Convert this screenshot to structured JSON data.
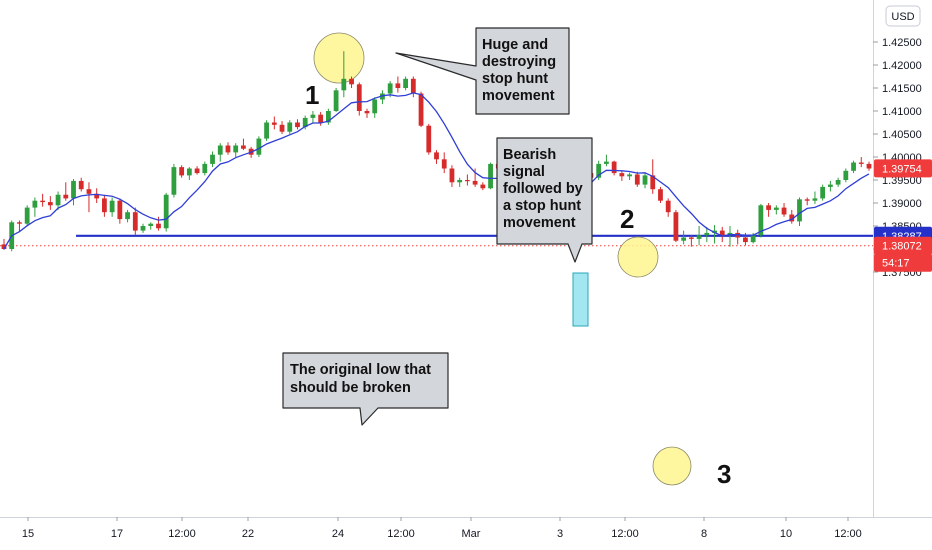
{
  "chart_data": {
    "type": "candlestick",
    "currency": "USD",
    "y_ticks": [
      "1.42500",
      "1.42000",
      "1.41500",
      "1.41000",
      "1.40500",
      "1.40000",
      "1.39500",
      "1.39000",
      "1.38500",
      "1.38000",
      "1.37500"
    ],
    "x_ticks": [
      "15",
      "17",
      "12:00",
      "22",
      "24",
      "12:00",
      "Mar",
      "3",
      "12:00",
      "8",
      "10",
      "12:00"
    ],
    "price_badges": [
      {
        "text": "1.39754",
        "value": 1.39754,
        "color": "#ef3b3b"
      },
      {
        "text": "1.38287",
        "value": 1.38287,
        "color": "#2430c8"
      },
      {
        "text": "1.38072",
        "value": 1.38072,
        "color": "#ef3b3b"
      },
      {
        "text": "54:17",
        "color": "#ef3b3b"
      }
    ],
    "horizontal_line": {
      "value": 1.38287,
      "color": "#2430c8"
    },
    "dotted_line": {
      "value": 1.38072,
      "color": "#ef3b3b"
    },
    "colors": {
      "up": "#2e9e3f",
      "down": "#d62b2b",
      "ma": "#2f3fd6",
      "callout": "#d3d6db",
      "highlight": "#fff68f"
    },
    "annotations": [
      {
        "id": "huge",
        "lines": [
          "Huge and",
          "destroying",
          "stop hunt",
          "movement"
        ]
      },
      {
        "id": "bearish",
        "lines": [
          "Bearish",
          "signal",
          "followed by",
          "a stop hunt",
          "movement"
        ]
      },
      {
        "id": "original",
        "lines": [
          "The original low that",
          "should be broken"
        ]
      }
    ],
    "number_labels": [
      "1",
      "2",
      "3"
    ],
    "candles": [
      [
        1.381,
        1.3822,
        1.3798,
        1.38
      ],
      [
        1.38,
        1.3862,
        1.3795,
        1.3858
      ],
      [
        1.3858,
        1.3862,
        1.3838,
        1.3855
      ],
      [
        1.3855,
        1.3895,
        1.385,
        1.389
      ],
      [
        1.389,
        1.3912,
        1.387,
        1.3905
      ],
      [
        1.3905,
        1.392,
        1.3892,
        1.3902
      ],
      [
        1.3902,
        1.3915,
        1.3885,
        1.3895
      ],
      [
        1.3895,
        1.3925,
        1.3885,
        1.3918
      ],
      [
        1.3918,
        1.3945,
        1.3905,
        1.391
      ],
      [
        1.391,
        1.3952,
        1.3895,
        1.3948
      ],
      [
        1.3948,
        1.3955,
        1.3925,
        1.393
      ],
      [
        1.393,
        1.3945,
        1.388,
        1.392
      ],
      [
        1.392,
        1.3932,
        1.39,
        1.391
      ],
      [
        1.391,
        1.3918,
        1.387,
        1.388
      ],
      [
        1.388,
        1.3912,
        1.387,
        1.3905
      ],
      [
        1.3905,
        1.391,
        1.3855,
        1.3865
      ],
      [
        1.3865,
        1.3885,
        1.3858,
        1.388
      ],
      [
        1.388,
        1.389,
        1.383,
        1.384
      ],
      [
        1.384,
        1.3855,
        1.3835,
        1.385
      ],
      [
        1.385,
        1.3858,
        1.3842,
        1.3855
      ],
      [
        1.3855,
        1.387,
        1.384,
        1.3845
      ],
      [
        1.3845,
        1.3922,
        1.3838,
        1.3918
      ],
      [
        1.3918,
        1.3985,
        1.3912,
        1.3978
      ],
      [
        1.3978,
        1.3982,
        1.3955,
        1.396
      ],
      [
        1.396,
        1.3978,
        1.395,
        1.3975
      ],
      [
        1.3975,
        1.398,
        1.3962,
        1.3965
      ],
      [
        1.3965,
        1.399,
        1.396,
        1.3985
      ],
      [
        1.3985,
        1.4012,
        1.3978,
        1.4005
      ],
      [
        1.4005,
        1.403,
        1.399,
        1.4025
      ],
      [
        1.4025,
        1.4032,
        1.4005,
        1.401
      ],
      [
        1.401,
        1.403,
        1.4,
        1.4025
      ],
      [
        1.4025,
        1.404,
        1.4015,
        1.4018
      ],
      [
        1.4018,
        1.4022,
        1.3998,
        1.4005
      ],
      [
        1.4005,
        1.4045,
        1.4,
        1.404
      ],
      [
        1.404,
        1.408,
        1.4035,
        1.4075
      ],
      [
        1.4075,
        1.4088,
        1.406,
        1.407
      ],
      [
        1.407,
        1.4078,
        1.405,
        1.4055
      ],
      [
        1.4055,
        1.408,
        1.405,
        1.4075
      ],
      [
        1.4075,
        1.4082,
        1.406,
        1.4065
      ],
      [
        1.4065,
        1.409,
        1.406,
        1.4085
      ],
      [
        1.4085,
        1.41,
        1.4075,
        1.4092
      ],
      [
        1.4092,
        1.4098,
        1.4068,
        1.4075
      ],
      [
        1.4075,
        1.4105,
        1.407,
        1.41
      ],
      [
        1.41,
        1.415,
        1.4098,
        1.4145
      ],
      [
        1.4145,
        1.423,
        1.413,
        1.417
      ],
      [
        1.417,
        1.4175,
        1.415,
        1.4158
      ],
      [
        1.4158,
        1.4162,
        1.409,
        1.41
      ],
      [
        1.41,
        1.4105,
        1.4085,
        1.4095
      ],
      [
        1.4095,
        1.413,
        1.4085,
        1.4125
      ],
      [
        1.4125,
        1.4145,
        1.4115,
        1.4138
      ],
      [
        1.4138,
        1.4165,
        1.413,
        1.416
      ],
      [
        1.416,
        1.4175,
        1.414,
        1.415
      ],
      [
        1.415,
        1.4175,
        1.4145,
        1.417
      ],
      [
        1.417,
        1.4175,
        1.413,
        1.4138
      ],
      [
        1.4138,
        1.4142,
        1.4065,
        1.4068
      ],
      [
        1.4068,
        1.4072,
        1.4005,
        1.401
      ],
      [
        1.401,
        1.4015,
        1.3985,
        1.3995
      ],
      [
        1.3995,
        1.401,
        1.3965,
        1.3975
      ],
      [
        1.3975,
        1.3982,
        1.3935,
        1.3945
      ],
      [
        1.3945,
        1.3955,
        1.3935,
        1.395
      ],
      [
        1.395,
        1.3962,
        1.3938,
        1.3948
      ],
      [
        1.3948,
        1.3975,
        1.3935,
        1.394
      ],
      [
        1.394,
        1.3945,
        1.3928,
        1.3932
      ],
      [
        1.3932,
        1.3988,
        1.393,
        1.3985
      ],
      [
        1.3985,
        1.3992,
        1.3968,
        1.3975
      ],
      [
        1.3975,
        1.3985,
        1.395,
        1.3958
      ],
      [
        1.3958,
        1.3962,
        1.3925,
        1.393
      ],
      [
        1.393,
        1.3945,
        1.391,
        1.392
      ],
      [
        1.392,
        1.3925,
        1.39,
        1.391
      ],
      [
        1.391,
        1.3915,
        1.388,
        1.3895
      ],
      [
        1.3895,
        1.39,
        1.386,
        1.3865
      ],
      [
        1.3865,
        1.392,
        1.386,
        1.3918
      ],
      [
        1.3918,
        1.3975,
        1.3912,
        1.3968
      ],
      [
        1.3968,
        1.3978,
        1.3958,
        1.3962
      ],
      [
        1.3962,
        1.3978,
        1.3955,
        1.3972
      ],
      [
        1.3972,
        1.3982,
        1.396,
        1.3965
      ],
      [
        1.3965,
        1.3972,
        1.3948,
        1.3955
      ],
      [
        1.3955,
        1.3992,
        1.395,
        1.3985
      ],
      [
        1.3985,
        1.4005,
        1.398,
        1.399
      ],
      [
        1.399,
        1.3992,
        1.396,
        1.3965
      ],
      [
        1.3965,
        1.397,
        1.3948,
        1.3958
      ],
      [
        1.3958,
        1.3966,
        1.395,
        1.3962
      ],
      [
        1.3962,
        1.3968,
        1.3935,
        1.394
      ],
      [
        1.394,
        1.3965,
        1.3932,
        1.396
      ],
      [
        1.396,
        1.3995,
        1.392,
        1.393
      ],
      [
        1.393,
        1.3935,
        1.39,
        1.3905
      ],
      [
        1.3905,
        1.391,
        1.387,
        1.388
      ],
      [
        1.388,
        1.3885,
        1.3815,
        1.3818
      ],
      [
        1.3818,
        1.384,
        1.381,
        1.3825
      ],
      [
        1.3825,
        1.383,
        1.3805,
        1.3822
      ],
      [
        1.3822,
        1.385,
        1.3808,
        1.383
      ],
      [
        1.383,
        1.3848,
        1.3815,
        1.3835
      ],
      [
        1.3835,
        1.3852,
        1.3812,
        1.384
      ],
      [
        1.384,
        1.3848,
        1.3815,
        1.383
      ],
      [
        1.383,
        1.385,
        1.3805,
        1.3835
      ],
      [
        1.3835,
        1.3842,
        1.381,
        1.3825
      ],
      [
        1.3825,
        1.3835,
        1.3808,
        1.3815
      ],
      [
        1.3815,
        1.3835,
        1.3812,
        1.383
      ],
      [
        1.383,
        1.3898,
        1.3825,
        1.3895
      ],
      [
        1.3895,
        1.39,
        1.387,
        1.3885
      ],
      [
        1.3885,
        1.3895,
        1.3875,
        1.389
      ],
      [
        1.389,
        1.39,
        1.387,
        1.3875
      ],
      [
        1.3875,
        1.3885,
        1.3855,
        1.386
      ],
      [
        1.386,
        1.3912,
        1.385,
        1.3908
      ],
      [
        1.3908,
        1.3912,
        1.3895,
        1.3905
      ],
      [
        1.3905,
        1.3925,
        1.3898,
        1.391
      ],
      [
        1.391,
        1.394,
        1.3905,
        1.3935
      ],
      [
        1.3935,
        1.3948,
        1.3925,
        1.394
      ],
      [
        1.394,
        1.3955,
        1.3935,
        1.395
      ],
      [
        1.395,
        1.3975,
        1.3945,
        1.397
      ],
      [
        1.397,
        1.3992,
        1.3965,
        1.3988
      ],
      [
        1.3988,
        1.4,
        1.3978,
        1.3985
      ],
      [
        1.3985,
        1.399,
        1.397,
        1.3975
      ]
    ]
  }
}
